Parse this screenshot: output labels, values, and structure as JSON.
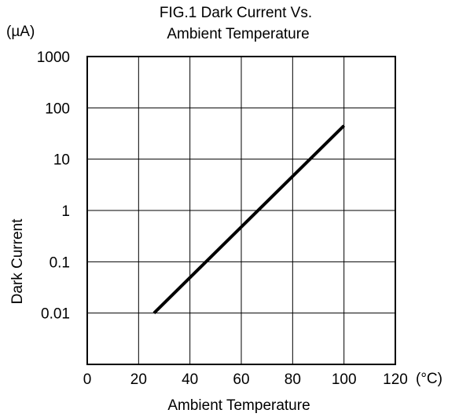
{
  "chart_data": {
    "type": "line",
    "title_line1": "FIG.1 Dark Current Vs.",
    "title_line2": "Ambient Temperature",
    "xlabel": "Ambient Temperature",
    "ylabel": "Dark Current",
    "xunit": "(°C)",
    "yunit": "(µA)",
    "xlim": [
      0,
      120
    ],
    "ylim": [
      0.001,
      1000
    ],
    "yscale": "log",
    "grid": true,
    "x_ticks": [
      "0",
      "20",
      "40",
      "60",
      "80",
      "100",
      "120"
    ],
    "y_ticks": [
      {
        "value": 1000,
        "label": "1000"
      },
      {
        "value": 100,
        "label": "100"
      },
      {
        "value": 10,
        "label": "10"
      },
      {
        "value": 1,
        "label": "1"
      },
      {
        "value": 0.1,
        "label": "0.1"
      },
      {
        "value": 0.01,
        "label": "0.01"
      }
    ],
    "series": [
      {
        "x": [
          26,
          100
        ],
        "y": [
          0.01,
          45
        ],
        "color": "#000000"
      }
    ]
  }
}
